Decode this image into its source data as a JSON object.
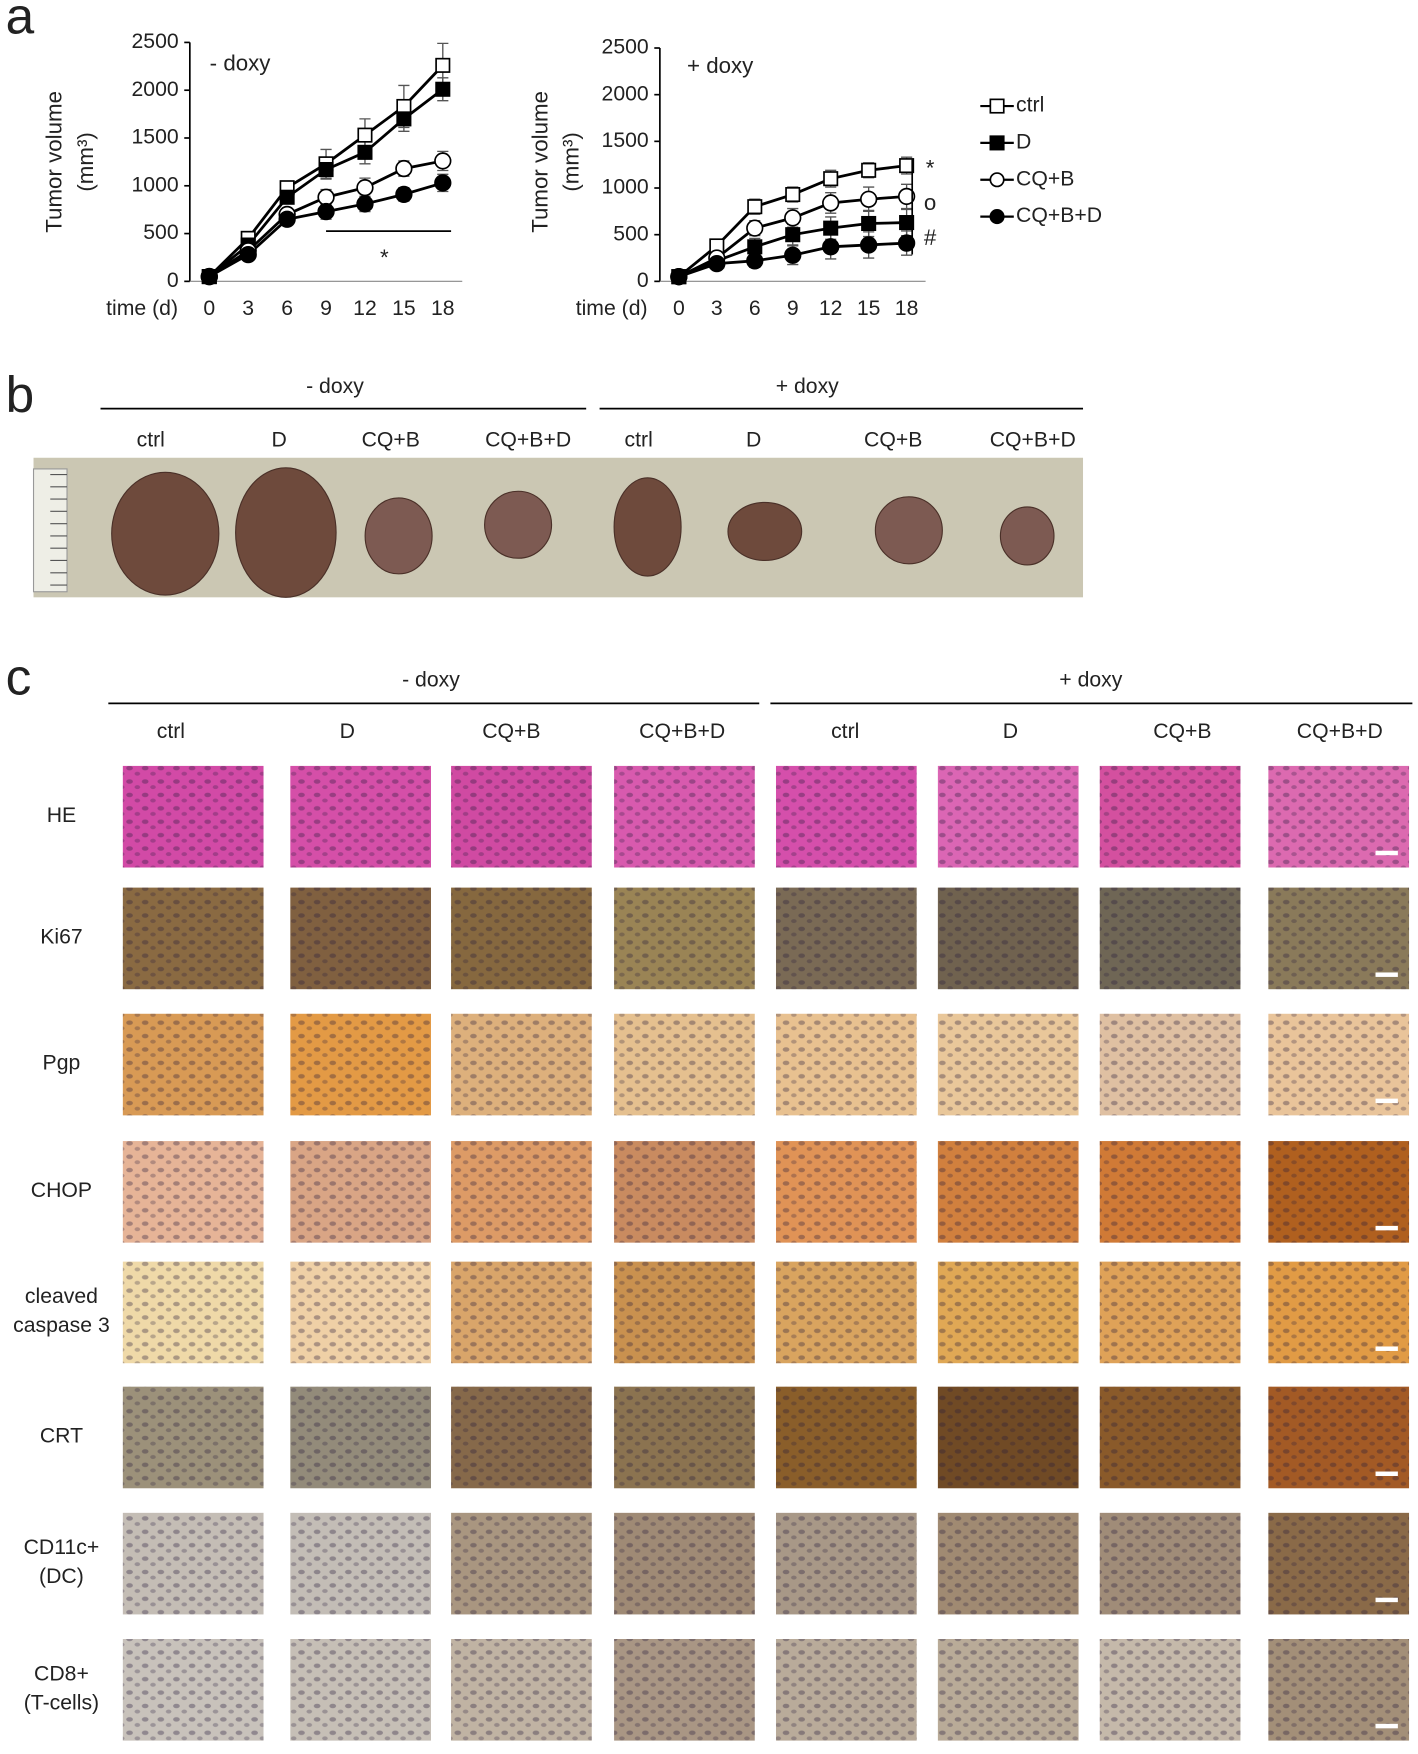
{
  "chart_data": [
    {
      "type": "line",
      "label": "- doxy",
      "ylabel": [
        "Tumor volume",
        "(mm³)"
      ],
      "xlabel": "time (d)",
      "x": [
        0,
        3,
        6,
        9,
        12,
        15,
        18
      ],
      "xlim": [
        -1.5,
        19.5
      ],
      "xticks": [
        0,
        3,
        6,
        9,
        12,
        15,
        18
      ],
      "ylim": [
        0,
        2500
      ],
      "yticks": [
        0,
        500,
        1000,
        1500,
        2000,
        2500
      ],
      "annotations": [
        "*"
      ],
      "series": [
        {
          "name": "ctrl",
          "color": "#000000",
          "marker": "square",
          "filled": false,
          "values": [
            50,
            450,
            980,
            1230,
            1530,
            1830,
            2260
          ],
          "errors": [
            30,
            50,
            60,
            150,
            170,
            220,
            230
          ]
        },
        {
          "name": "D",
          "color": "#000000",
          "marker": "square",
          "filled": true,
          "values": [
            50,
            380,
            880,
            1170,
            1350,
            1700,
            2010
          ],
          "errors": [
            30,
            40,
            60,
            100,
            120,
            130,
            120
          ]
        },
        {
          "name": "CQ+B",
          "color": "#000000",
          "marker": "circle",
          "filled": false,
          "values": [
            50,
            320,
            700,
            880,
            980,
            1180,
            1260
          ],
          "errors": [
            20,
            40,
            60,
            80,
            100,
            80,
            100
          ]
        },
        {
          "name": "CQ+B+D",
          "color": "#000000",
          "marker": "circle",
          "filled": true,
          "values": [
            50,
            280,
            650,
            730,
            810,
            910,
            1030
          ],
          "errors": [
            20,
            30,
            40,
            80,
            80,
            70,
            90
          ]
        }
      ]
    },
    {
      "type": "line",
      "label": "+ doxy",
      "ylabel": [
        "Tumor volume",
        "(mm³)"
      ],
      "xlabel": "time (d)",
      "x": [
        0,
        3,
        6,
        9,
        12,
        15,
        18
      ],
      "xlim": [
        -1.5,
        19.5
      ],
      "xticks": [
        0,
        3,
        6,
        9,
        12,
        15,
        18
      ],
      "ylim": [
        0,
        2500
      ],
      "yticks": [
        0,
        500,
        1000,
        1500,
        2000,
        2500
      ],
      "annotations": [
        "*",
        "o",
        "#"
      ],
      "legend": "right",
      "series": [
        {
          "name": "ctrl",
          "color": "#000000",
          "marker": "square",
          "filled": false,
          "values": [
            50,
            380,
            800,
            930,
            1100,
            1190,
            1240
          ],
          "errors": [
            30,
            50,
            80,
            80,
            90,
            80,
            90
          ]
        },
        {
          "name": "D",
          "color": "#000000",
          "marker": "square",
          "filled": true,
          "values": [
            50,
            220,
            370,
            500,
            570,
            620,
            630
          ],
          "errors": [
            20,
            40,
            90,
            110,
            120,
            140,
            140
          ]
        },
        {
          "name": "CQ+B",
          "color": "#000000",
          "marker": "circle",
          "filled": false,
          "values": [
            50,
            250,
            570,
            680,
            840,
            880,
            910
          ],
          "errors": [
            20,
            40,
            80,
            100,
            110,
            130,
            130
          ]
        },
        {
          "name": "CQ+B+D",
          "color": "#000000",
          "marker": "circle",
          "filled": true,
          "values": [
            50,
            190,
            220,
            280,
            370,
            390,
            410
          ],
          "errors": [
            20,
            30,
            70,
            100,
            130,
            140,
            130
          ]
        }
      ]
    }
  ],
  "panel_labels": [
    "a",
    "b",
    "c"
  ],
  "panel_b": {
    "headers": [
      "- doxy",
      "+ doxy"
    ],
    "columns": [
      "ctrl",
      "D",
      "CQ+B",
      "CQ+B+D",
      "ctrl",
      "D",
      "CQ+B",
      "CQ+B+D"
    ]
  },
  "panel_c": {
    "headers": [
      "- doxy",
      "+ doxy"
    ],
    "columns": [
      "ctrl",
      "D",
      "CQ+B",
      "CQ+B+D",
      "ctrl",
      "D",
      "CQ+B",
      "CQ+B+D"
    ],
    "rows": [
      [
        "HE"
      ],
      [
        "Ki67"
      ],
      [
        "Pgp"
      ],
      [
        "CHOP"
      ],
      [
        "cleaved",
        "caspase 3"
      ],
      [
        "CRT"
      ],
      [
        "CD11c+",
        "(DC)"
      ],
      [
        "CD8+",
        "(T-cells)"
      ]
    ]
  }
}
